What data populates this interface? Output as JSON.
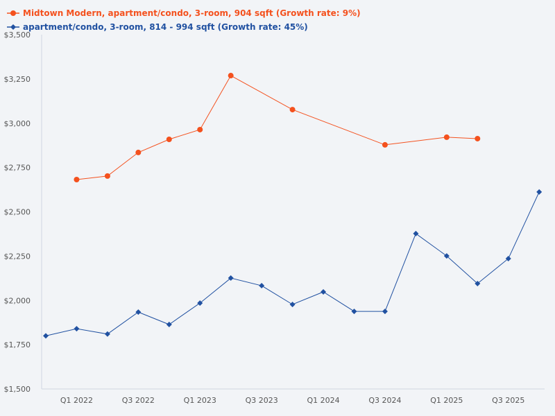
{
  "chart_data": {
    "type": "line",
    "categories": [
      "Q4 2021",
      "Q1 2022",
      "Q2 2022",
      "Q3 2022",
      "Q4 2022",
      "Q1 2023",
      "Q2 2023",
      "Q3 2023",
      "Q4 2023",
      "Q1 2024",
      "Q2 2024",
      "Q3 2024",
      "Q4 2024",
      "Q1 2025",
      "Q2 2025",
      "Q3 2025",
      "Q4 2025"
    ],
    "x_tick_labels": [
      "Q1 2022",
      "Q3 2022",
      "Q1 2023",
      "Q3 2023",
      "Q1 2024",
      "Q3 2024",
      "Q1 2025",
      "Q3 2025"
    ],
    "y_tick_labels": [
      "$1,500",
      "$1,750",
      "$2,000",
      "$2,250",
      "$2,500",
      "$2,750",
      "$3,000",
      "$3,250",
      "$3,500"
    ],
    "ylim": [
      1500,
      3500
    ],
    "grid": false,
    "legend_position": "top-left",
    "series": [
      {
        "name": "Midtown Modern, apartment/condo, 3-room, 904 sqft (Growth rate: 9%)",
        "color": "#f4511e",
        "marker": "circle",
        "values": [
          null,
          2682,
          2702,
          2835,
          2909,
          2964,
          3269,
          null,
          3077,
          null,
          null,
          2878,
          null,
          2921,
          2913,
          null,
          null
        ]
      },
      {
        "name": "apartment/condo, 3-room, 814 - 994 sqft (Growth rate: 45%)",
        "color": "#2151a1",
        "marker": "diamond",
        "values": [
          1800,
          1840,
          1810,
          1934,
          1864,
          1985,
          2126,
          2083,
          1977,
          2048,
          1938,
          1938,
          2377,
          2251,
          2095,
          2236,
          2612
        ]
      }
    ]
  }
}
